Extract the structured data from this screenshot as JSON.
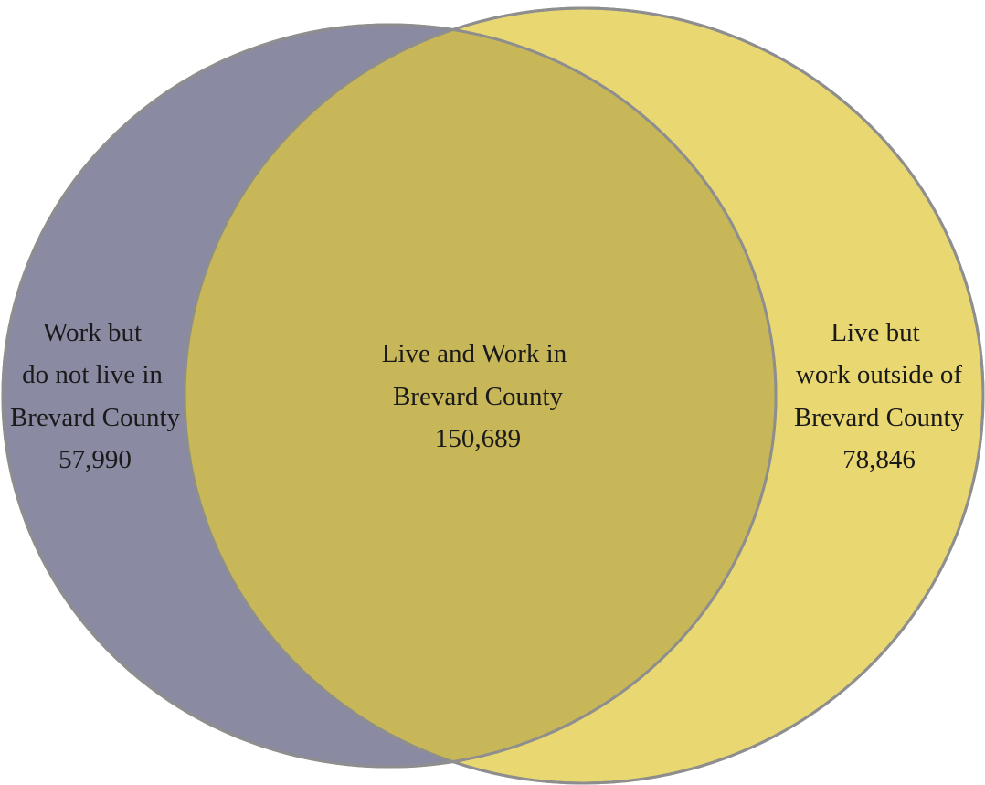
{
  "colors": {
    "left_circle_fill": "#8A8AA3",
    "right_circle_fill": "#E9D872",
    "overlap_fill": "#C7B759",
    "circle_stroke": "#8E8E8E",
    "text": "#1a1a1a"
  },
  "regions": {
    "left": {
      "line1": "Work but",
      "line2": "do not live in",
      "line3": "Brevard County",
      "count": "57,990"
    },
    "center": {
      "line1": "Live and Work in",
      "line2": "Brevard County",
      "count": "150,689"
    },
    "right": {
      "line1": "Live but",
      "line2": "work outside of",
      "line3": "Brevard County",
      "count": "78,846"
    }
  }
}
